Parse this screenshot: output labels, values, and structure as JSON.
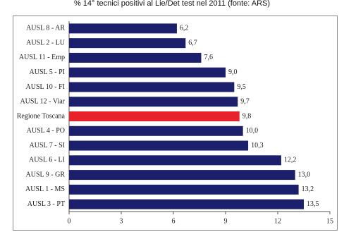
{
  "chart_data": {
    "type": "barh",
    "title": "% 14° tecnici positivi al Lie/Det test nel 2011 (fonte: ARS)",
    "categories": [
      "AUSL 8 - AR",
      "AUSL 2 - LU",
      "AUSL 11 - Emp",
      "AUSL 5 - PI",
      "AUSL 10 - FI",
      "AUSL 12 - Viar",
      "Regione Toscana",
      "AUSL 4 - PO",
      "AUSL 7 - SI",
      "AUSL 6 - LI",
      "AUSL 9 - GR",
      "AUSL 1 - MS",
      "AUSL 3 - PT"
    ],
    "values": [
      6.2,
      6.7,
      7.6,
      9.0,
      9.5,
      9.7,
      9.8,
      10.0,
      10.3,
      12.2,
      13.0,
      13.2,
      13.5
    ],
    "value_labels": [
      "6,2",
      "6,7",
      "7,6",
      "9,0",
      "9,5",
      "9,7",
      "9,8",
      "10,0",
      "10,3",
      "12,2",
      "13,0",
      "13,2",
      "13,5"
    ],
    "colors": [
      "#1c1f6b",
      "#1c1f6b",
      "#1c1f6b",
      "#1c1f6b",
      "#1c1f6b",
      "#1c1f6b",
      "#e8222a",
      "#1c1f6b",
      "#1c1f6b",
      "#1c1f6b",
      "#1c1f6b",
      "#1c1f6b",
      "#1c1f6b"
    ],
    "xlim": [
      0,
      15
    ],
    "xticks": [
      0,
      3,
      6,
      9,
      12,
      15
    ]
  }
}
